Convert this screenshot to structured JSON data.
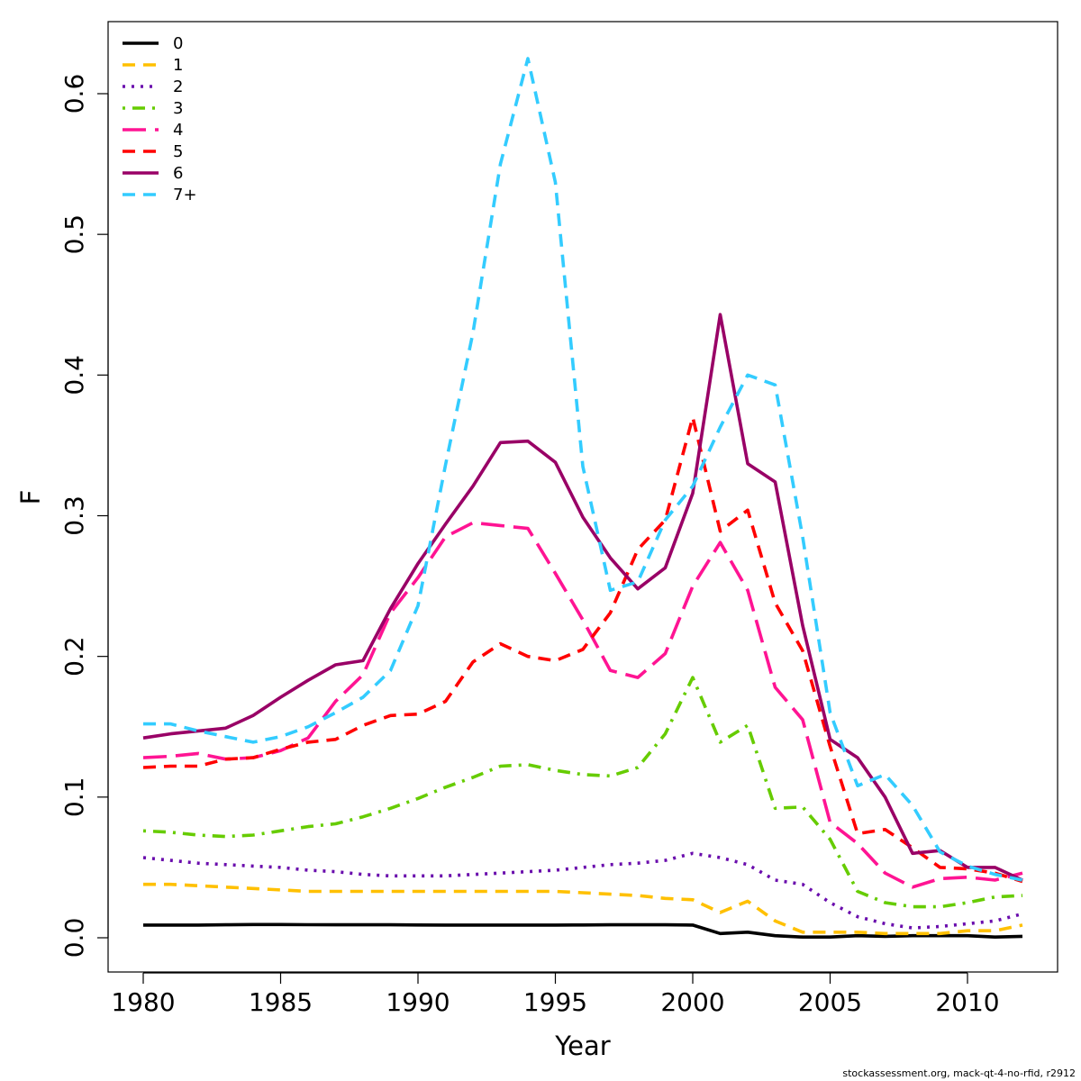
{
  "chart_data": {
    "type": "line",
    "title": "",
    "xlabel": "Year",
    "ylabel": "F",
    "xlim": [
      1979,
      2013
    ],
    "ylim": [
      -0.025,
      0.65
    ],
    "xticks": [
      1980,
      1985,
      1990,
      1995,
      2000,
      2005,
      2010
    ],
    "yticks": [
      0.0,
      0.1,
      0.2,
      0.3,
      0.4,
      0.5,
      0.6
    ],
    "ytick_labels": [
      "0.0",
      "0.1",
      "0.2",
      "0.3",
      "0.4",
      "0.5",
      "0.6"
    ],
    "legend_position": "top-left",
    "grid": false,
    "x": [
      1980,
      1981,
      1982,
      1983,
      1984,
      1985,
      1986,
      1987,
      1988,
      1989,
      1990,
      1991,
      1992,
      1993,
      1994,
      1995,
      1996,
      1997,
      1998,
      1999,
      2000,
      2001,
      2002,
      2003,
      2004,
      2005,
      2006,
      2007,
      2008,
      2009,
      2010,
      2011,
      2012
    ],
    "series": [
      {
        "name": "0",
        "color": "#000000",
        "dash": "solid",
        "values": [
          0.009,
          0.009,
          0.009,
          0.0092,
          0.0094,
          0.0094,
          0.0093,
          0.0092,
          0.0092,
          0.0092,
          0.0091,
          0.009,
          0.009,
          0.009,
          0.009,
          0.009,
          0.0091,
          0.0092,
          0.0092,
          0.0092,
          0.009,
          0.003,
          0.004,
          0.0015,
          0.0005,
          0.0005,
          0.0015,
          0.001,
          0.0015,
          0.0015,
          0.0015,
          0.0005,
          0.001
        ]
      },
      {
        "name": "1",
        "color": "#FFC000",
        "dash": "dashed",
        "values": [
          0.038,
          0.038,
          0.037,
          0.036,
          0.035,
          0.034,
          0.033,
          0.033,
          0.033,
          0.033,
          0.033,
          0.033,
          0.033,
          0.033,
          0.033,
          0.033,
          0.032,
          0.031,
          0.03,
          0.028,
          0.027,
          0.018,
          0.026,
          0.012,
          0.004,
          0.004,
          0.004,
          0.003,
          0.003,
          0.003,
          0.005,
          0.005,
          0.009
        ]
      },
      {
        "name": "2",
        "color": "#6A0DAD",
        "dash": "dotted",
        "values": [
          0.057,
          0.055,
          0.053,
          0.052,
          0.051,
          0.05,
          0.048,
          0.047,
          0.045,
          0.044,
          0.044,
          0.044,
          0.045,
          0.046,
          0.047,
          0.048,
          0.05,
          0.052,
          0.053,
          0.055,
          0.06,
          0.057,
          0.052,
          0.041,
          0.038,
          0.025,
          0.015,
          0.01,
          0.007,
          0.008,
          0.01,
          0.012,
          0.017
        ]
      },
      {
        "name": "3",
        "color": "#66CC00",
        "dash": "dotdash",
        "values": [
          0.076,
          0.075,
          0.073,
          0.072,
          0.073,
          0.076,
          0.079,
          0.081,
          0.086,
          0.092,
          0.099,
          0.107,
          0.114,
          0.122,
          0.123,
          0.119,
          0.116,
          0.115,
          0.121,
          0.145,
          0.185,
          0.139,
          0.151,
          0.092,
          0.093,
          0.07,
          0.033,
          0.025,
          0.022,
          0.022,
          0.025,
          0.029,
          0.03
        ]
      },
      {
        "name": "4",
        "color": "#FF1493",
        "dash": "longdash",
        "values": [
          0.128,
          0.129,
          0.131,
          0.127,
          0.128,
          0.133,
          0.142,
          0.168,
          0.187,
          0.231,
          0.256,
          0.285,
          0.295,
          0.293,
          0.291,
          0.259,
          0.226,
          0.19,
          0.185,
          0.202,
          0.25,
          0.281,
          0.247,
          0.178,
          0.155,
          0.082,
          0.067,
          0.046,
          0.036,
          0.042,
          0.043,
          0.041,
          0.046
        ]
      },
      {
        "name": "5",
        "color": "#FF0000",
        "dash": "dashed",
        "values": [
          0.121,
          0.122,
          0.122,
          0.127,
          0.128,
          0.134,
          0.139,
          0.141,
          0.151,
          0.158,
          0.159,
          0.168,
          0.196,
          0.209,
          0.2,
          0.197,
          0.205,
          0.231,
          0.276,
          0.297,
          0.37,
          0.289,
          0.304,
          0.238,
          0.204,
          0.136,
          0.074,
          0.077,
          0.064,
          0.05,
          0.049,
          0.046,
          0.04
        ]
      },
      {
        "name": "6",
        "color": "#990066",
        "dash": "solid",
        "values": [
          0.142,
          0.145,
          0.147,
          0.149,
          0.158,
          0.171,
          0.183,
          0.194,
          0.197,
          0.234,
          0.266,
          0.294,
          0.321,
          0.352,
          0.353,
          0.338,
          0.299,
          0.27,
          0.248,
          0.263,
          0.316,
          0.443,
          0.337,
          0.324,
          0.222,
          0.141,
          0.128,
          0.1,
          0.06,
          0.062,
          0.05,
          0.05,
          0.041
        ]
      },
      {
        "name": "7+",
        "color": "#33CCFF",
        "dash": "dashed",
        "values": [
          0.152,
          0.152,
          0.147,
          0.143,
          0.139,
          0.143,
          0.15,
          0.16,
          0.171,
          0.19,
          0.236,
          0.336,
          0.43,
          0.55,
          0.625,
          0.537,
          0.335,
          0.247,
          0.253,
          0.297,
          0.321,
          0.363,
          0.4,
          0.393,
          0.285,
          0.16,
          0.108,
          0.116,
          0.094,
          0.061,
          0.051,
          0.045,
          0.041
        ]
      }
    ]
  },
  "footer_text": "stockassessment.org, mack-qt-4-no-rfid, r2912"
}
